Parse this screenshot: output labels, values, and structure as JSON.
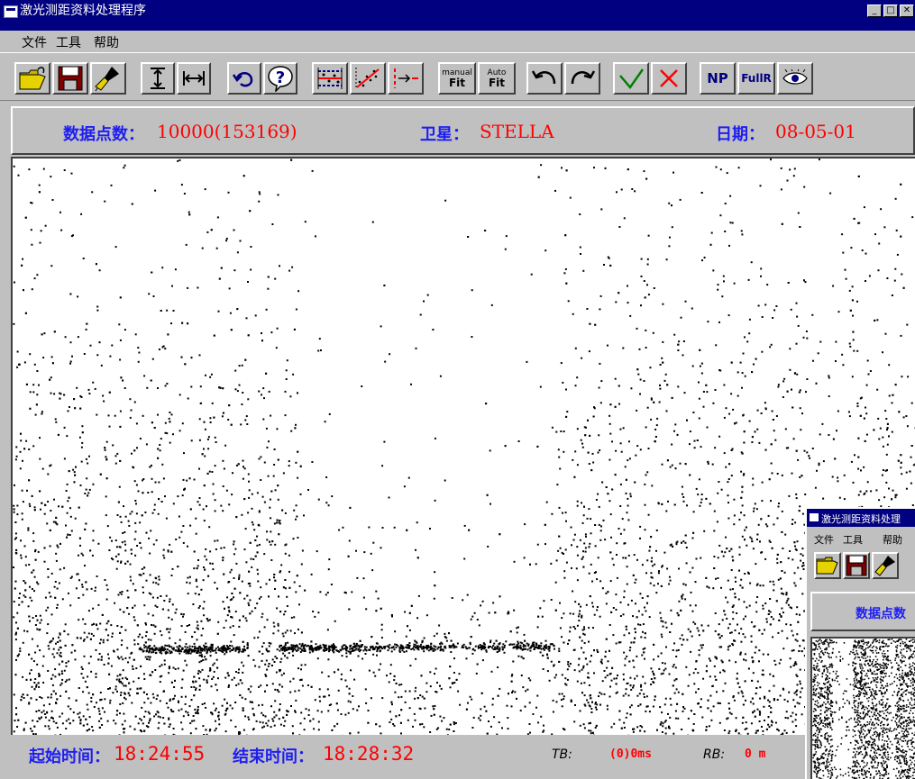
{
  "window": {
    "title": "激光测距资料处理程序",
    "buttons": [
      "minimize-button",
      "maximize-button",
      "close-button"
    ]
  },
  "menu": {
    "items": [
      "文件",
      "工具",
      "帮助"
    ]
  },
  "toolbar": {
    "buttons": [
      {
        "name": "open-icon"
      },
      {
        "name": "save-icon"
      },
      {
        "name": "brush-icon"
      },
      {
        "name": "vertical-range-icon"
      },
      {
        "name": "horizontal-range-icon"
      },
      {
        "name": "undo-icon"
      },
      {
        "name": "help-icon"
      },
      {
        "name": "filter-band-icon"
      },
      {
        "name": "scatter-fit-icon"
      },
      {
        "name": "arrow-red-icon"
      },
      {
        "name": "manual-fit",
        "top": "manual",
        "bottom": "Fit"
      },
      {
        "name": "auto-fit",
        "top": "Auto",
        "bottom": "Fit"
      },
      {
        "name": "back-arrow-icon"
      },
      {
        "name": "forward-arrow-icon"
      },
      {
        "name": "check-icon"
      },
      {
        "name": "cross-icon"
      },
      {
        "name": "np",
        "label": "NP"
      },
      {
        "name": "fullr",
        "label": "FullR"
      },
      {
        "name": "eye-icon"
      }
    ]
  },
  "info": {
    "points_label": "数据点数：",
    "points_value": "10000(153169)",
    "satellite_label": "卫星：",
    "satellite_value": "STELLA",
    "date_label": "日期：",
    "date_value": "08-05-01"
  },
  "status": {
    "start_label": "起始时间：",
    "start_value": "18:24:55",
    "end_label": "结束时间：",
    "end_value": "18:28:32",
    "tb_label": "TB:",
    "tb_value": "(0)0ms",
    "rb_label": "RB:",
    "rb_value": "0 m"
  },
  "mini_window": {
    "title": "激光测距资料处理",
    "menu": [
      "文件",
      "工具",
      "帮助"
    ],
    "points_label": "数据点数"
  },
  "colors": {
    "title_bar": "#000080",
    "label_blue": "#1e1ef0",
    "value_red": "#ff0000",
    "face": "#c0c0c0"
  }
}
